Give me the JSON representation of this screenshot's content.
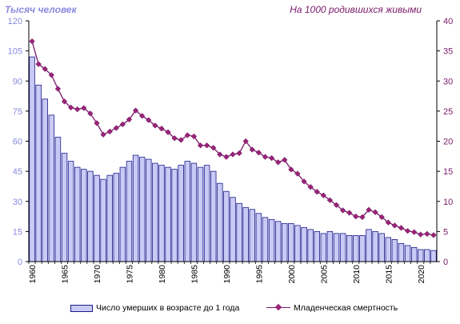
{
  "chart_data": {
    "type": "bar",
    "left_axis_unit": "Тысяч человек",
    "right_axis_unit": "На 1000 родившихся живыми",
    "x": [
      1960,
      1961,
      1962,
      1963,
      1964,
      1965,
      1966,
      1967,
      1968,
      1969,
      1970,
      1971,
      1972,
      1973,
      1974,
      1975,
      1976,
      1977,
      1978,
      1979,
      1980,
      1981,
      1982,
      1983,
      1984,
      1985,
      1986,
      1987,
      1988,
      1989,
      1990,
      1991,
      1992,
      1993,
      1994,
      1995,
      1996,
      1997,
      1998,
      1999,
      2000,
      2001,
      2002,
      2003,
      2004,
      2005,
      2006,
      2007,
      2008,
      2009,
      2010,
      2011,
      2012,
      2013,
      2014,
      2015,
      2016,
      2017,
      2018,
      2019,
      2020,
      2021,
      2022
    ],
    "x_tick_labels": [
      "1960",
      "1965",
      "1970",
      "1975",
      "1980",
      "1985",
      "1990",
      "1995",
      "2000",
      "2005",
      "2010",
      "2015",
      "2020"
    ],
    "y_left_ticks": [
      "0",
      "15",
      "30",
      "45",
      "60",
      "75",
      "90",
      "105",
      "120"
    ],
    "y_right_ticks": [
      "0",
      "5",
      "10",
      "15",
      "20",
      "25",
      "30",
      "35",
      "40"
    ],
    "ylim_left": [
      0,
      120
    ],
    "ylim_right": [
      0,
      40
    ],
    "series": [
      {
        "name": "Число  умерших в возрасте до 1 года",
        "type": "bar",
        "axis": "left",
        "color": "#c9caf5",
        "edge_color": "#1b1b8a",
        "values": [
          102,
          88,
          81,
          73,
          62,
          54,
          50,
          47,
          46,
          45,
          43,
          41,
          43,
          44,
          47,
          50,
          53,
          52,
          51,
          49,
          48,
          47,
          46,
          48,
          50,
          49,
          47,
          48,
          45,
          39,
          35,
          32,
          29,
          27,
          26,
          24,
          22,
          21,
          20,
          19,
          19,
          18,
          17,
          16,
          15,
          14,
          15,
          14,
          14,
          13,
          13,
          13,
          16,
          15,
          14,
          12,
          11,
          9,
          8,
          7,
          6,
          6,
          5.5
        ]
      },
      {
        "name": "Младенческая  смертность",
        "type": "line",
        "axis": "right",
        "color": "#9b2477",
        "line_color": "#7a1a6a",
        "values": [
          36.6,
          32.8,
          32.0,
          31.0,
          28.7,
          26.6,
          25.6,
          25.3,
          25.5,
          24.6,
          23.0,
          21.1,
          21.6,
          22.2,
          22.8,
          23.6,
          25.1,
          24.2,
          23.5,
          22.6,
          22.1,
          21.5,
          20.5,
          20.2,
          21.0,
          20.8,
          19.3,
          19.3,
          18.9,
          17.8,
          17.4,
          17.8,
          18.0,
          20.0,
          18.6,
          18.1,
          17.4,
          17.2,
          16.5,
          16.9,
          15.3,
          14.6,
          13.3,
          12.4,
          11.6,
          11.0,
          10.2,
          9.4,
          8.5,
          8.1,
          7.5,
          7.4,
          8.6,
          8.2,
          7.4,
          6.5,
          6.0,
          5.6,
          5.1,
          4.9,
          4.5,
          4.6,
          4.4
        ]
      }
    ],
    "grid": false,
    "legend_position": "bottom"
  }
}
